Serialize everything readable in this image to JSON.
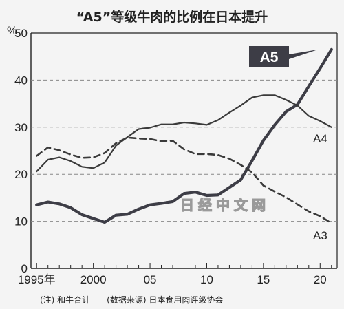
{
  "chart_data": {
    "type": "line",
    "title": "“A5”等级牛肉的比例在日本提升",
    "ylabel": "%",
    "xlabel": "",
    "ylim": [
      0,
      50
    ],
    "xlim": [
      1994.5,
      2021.5
    ],
    "y_ticks": [
      "0",
      "10",
      "20",
      "30",
      "40",
      "50"
    ],
    "x_ticks": [
      {
        "value": 1995,
        "label": "1995年"
      },
      {
        "value": 2000,
        "label": "2000"
      },
      {
        "value": 2005,
        "label": "05"
      },
      {
        "value": 2010,
        "label": "10"
      },
      {
        "value": 2015,
        "label": "15"
      },
      {
        "value": 2020,
        "label": "20"
      }
    ],
    "grid": "dashed-horizontal",
    "x": [
      1995,
      1996,
      1997,
      1998,
      1999,
      2000,
      2001,
      2002,
      2003,
      2004,
      2005,
      2006,
      2007,
      2008,
      2009,
      2010,
      2011,
      2012,
      2013,
      2014,
      2015,
      2016,
      2017,
      2018,
      2019,
      2020,
      2021
    ],
    "series": [
      {
        "name": "A5",
        "values": [
          13.5,
          14.1,
          13.7,
          12.9,
          11.4,
          10.6,
          9.8,
          11.3,
          11.5,
          12.6,
          13.5,
          13.8,
          14.2,
          15.9,
          16.2,
          15.5,
          15.6,
          17.2,
          18.8,
          22.9,
          27.2,
          30.5,
          33.3,
          34.8,
          38.7,
          42.5,
          46.5
        ]
      },
      {
        "name": "A4",
        "values": [
          20.6,
          23.1,
          23.6,
          22.8,
          21.6,
          21.3,
          22.5,
          26.1,
          27.9,
          29.6,
          29.9,
          30.6,
          30.6,
          31.0,
          30.8,
          30.5,
          31.5,
          33.1,
          34.6,
          36.3,
          36.8,
          36.8,
          35.8,
          34.6,
          32.4,
          31.3,
          30.0
        ]
      },
      {
        "name": "A3",
        "values": [
          23.9,
          25.7,
          25.1,
          24.2,
          23.5,
          23.6,
          24.5,
          26.6,
          27.8,
          27.6,
          27.5,
          27.0,
          27.1,
          25.3,
          24.3,
          24.3,
          24.1,
          23.3,
          22.0,
          20.4,
          17.6,
          16.3,
          15.1,
          13.6,
          12.1,
          11.1,
          9.6
        ]
      }
    ],
    "annotations": {
      "a5_label": "A5",
      "a4_label": "A4",
      "a3_label": "A3"
    },
    "note": "(注) 和牛合计　　(数据来源) 日本食用肉评级协会",
    "watermark": "日经中文网",
    "colors": {
      "A5": "#3d3d46",
      "A4": "#3a3a3a",
      "A3": "#3a3a3a",
      "background": "#f4f4f4",
      "a5_box": "#3d3d46",
      "grid": "#888888"
    }
  }
}
